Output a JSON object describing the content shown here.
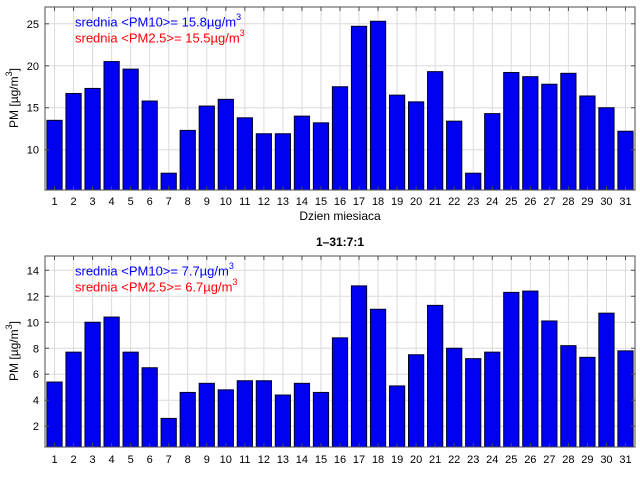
{
  "figure": {
    "background": "#ffffff",
    "bar_fill": "#0000f0",
    "bar_edge": "#000028",
    "grid_color": "#dcdcdc",
    "axis_color": "#4d4d4d",
    "tick_label_color": "#000000",
    "pm10_text_color": "#0000ff",
    "pm25_text_color": "#ff0000"
  },
  "chart_data": [
    {
      "type": "bar",
      "title": "",
      "xlabel": "Dzien miesiaca",
      "ylabel": "PM [µg/m",
      "ylabel_sup": "3",
      "ylabel_close": "]",
      "categories": [
        1,
        2,
        3,
        4,
        5,
        6,
        7,
        8,
        9,
        10,
        11,
        12,
        13,
        14,
        15,
        16,
        17,
        18,
        19,
        20,
        21,
        22,
        23,
        24,
        25,
        26,
        27,
        28,
        29,
        30,
        31
      ],
      "values": [
        13.5,
        16.7,
        17.3,
        20.5,
        19.6,
        15.8,
        7.2,
        12.3,
        15.2,
        16.0,
        13.8,
        11.9,
        11.9,
        14.0,
        13.2,
        17.5,
        24.7,
        25.3,
        16.5,
        15.7,
        19.3,
        13.4,
        7.2,
        14.3,
        19.2,
        18.7,
        17.8,
        19.1,
        16.4,
        15.0,
        12.2
      ],
      "ylim": [
        5.2,
        27.0
      ],
      "yticks": [
        10,
        15,
        20,
        25
      ],
      "grid": true,
      "legend_position": "inside-top-left",
      "annotations": [
        {
          "text": "srednia <PM10>= 15.8µg/m",
          "sup": "3",
          "color": "#0000ff"
        },
        {
          "text": "srednia <PM2.5>= 15.5µg/m",
          "sup": "3",
          "color": "#ff0000"
        }
      ]
    },
    {
      "type": "bar",
      "title": "1–31:7:1",
      "xlabel": "",
      "ylabel": "PM [µg/m",
      "ylabel_sup": "3",
      "ylabel_close": "]",
      "categories": [
        1,
        2,
        3,
        4,
        5,
        6,
        7,
        8,
        9,
        10,
        11,
        12,
        13,
        14,
        15,
        16,
        17,
        18,
        19,
        20,
        21,
        22,
        23,
        24,
        25,
        26,
        27,
        28,
        29,
        30,
        31
      ],
      "values": [
        5.4,
        7.7,
        10.0,
        10.4,
        7.7,
        6.5,
        2.6,
        4.6,
        5.3,
        4.8,
        5.5,
        5.5,
        4.4,
        5.3,
        4.6,
        8.8,
        12.8,
        11.0,
        5.1,
        7.5,
        11.3,
        8.0,
        7.2,
        7.7,
        12.3,
        12.4,
        10.1,
        8.2,
        7.3,
        10.7,
        7.8
      ],
      "ylim": [
        0.4,
        15.1
      ],
      "yticks": [
        2,
        4,
        6,
        8,
        10,
        12,
        14
      ],
      "grid": true,
      "legend_position": "inside-top-left",
      "annotations": [
        {
          "text": "srednia <PM10>= 7.7µg/m",
          "sup": "3",
          "color": "#0000ff"
        },
        {
          "text": "srednia <PM2.5>= 6.7µg/m",
          "sup": "3",
          "color": "#ff0000"
        }
      ]
    }
  ]
}
